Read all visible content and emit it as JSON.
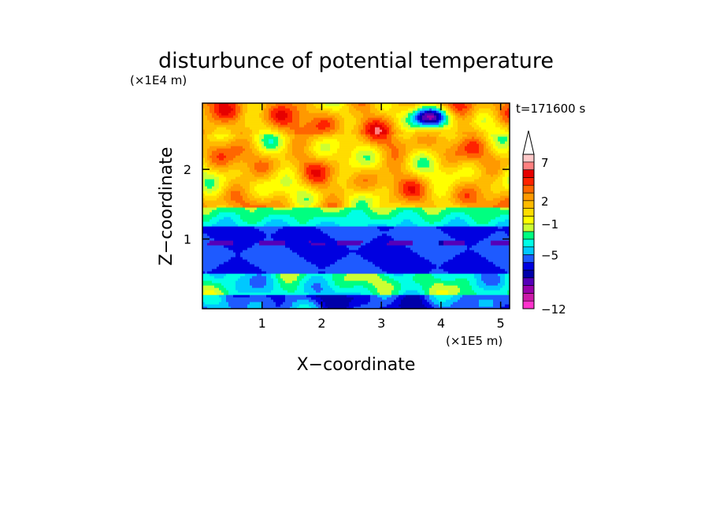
{
  "chart_data": {
    "type": "heatmap",
    "title": "disturbunce of potential temperature",
    "xlabel": "X−coordinate",
    "ylabel": "Z−coordinate",
    "x_unit": "(×1E5 m)",
    "y_unit": "(×1E4 m)",
    "time_label": "t=171600 s",
    "xlim": [
      0,
      5.15
    ],
    "ylim": [
      0,
      2.95
    ],
    "x_ticks": [
      1,
      2,
      3,
      4,
      5
    ],
    "y_ticks": [
      1,
      2
    ],
    "colorbar": {
      "levels": [
        -12,
        -11,
        -10,
        -9,
        -8,
        -7,
        -6,
        -5,
        -4,
        -3,
        -2,
        -1,
        0,
        1,
        2,
        3,
        4,
        5,
        6,
        7,
        8,
        9,
        10
      ],
      "tick_labels": [
        -12,
        -5,
        -1,
        2,
        7
      ],
      "colors": [
        "#ff33cc",
        "#cc1aa8",
        "#9900aa",
        "#5500b8",
        "#0000aa",
        "#0000e0",
        "#1e5aff",
        "#00c8ff",
        "#00ffe6",
        "#00ff80",
        "#ccff33",
        "#ffff00",
        "#ffdd00",
        "#ffbb00",
        "#ff9900",
        "#ff6600",
        "#ff2200",
        "#e60000",
        "#ff8080",
        "#ffc8c8"
      ],
      "extend": "max"
    },
    "bands": [
      {
        "z_from": 0.0,
        "z_to": 0.5,
        "level": -3
      },
      {
        "z_from": 0.5,
        "z_to": 1.2,
        "level": -6
      },
      {
        "z_from": 1.2,
        "z_to": 1.45,
        "level": -4
      },
      {
        "z_from": 1.45,
        "z_to": 2.95,
        "level": 0
      }
    ]
  }
}
